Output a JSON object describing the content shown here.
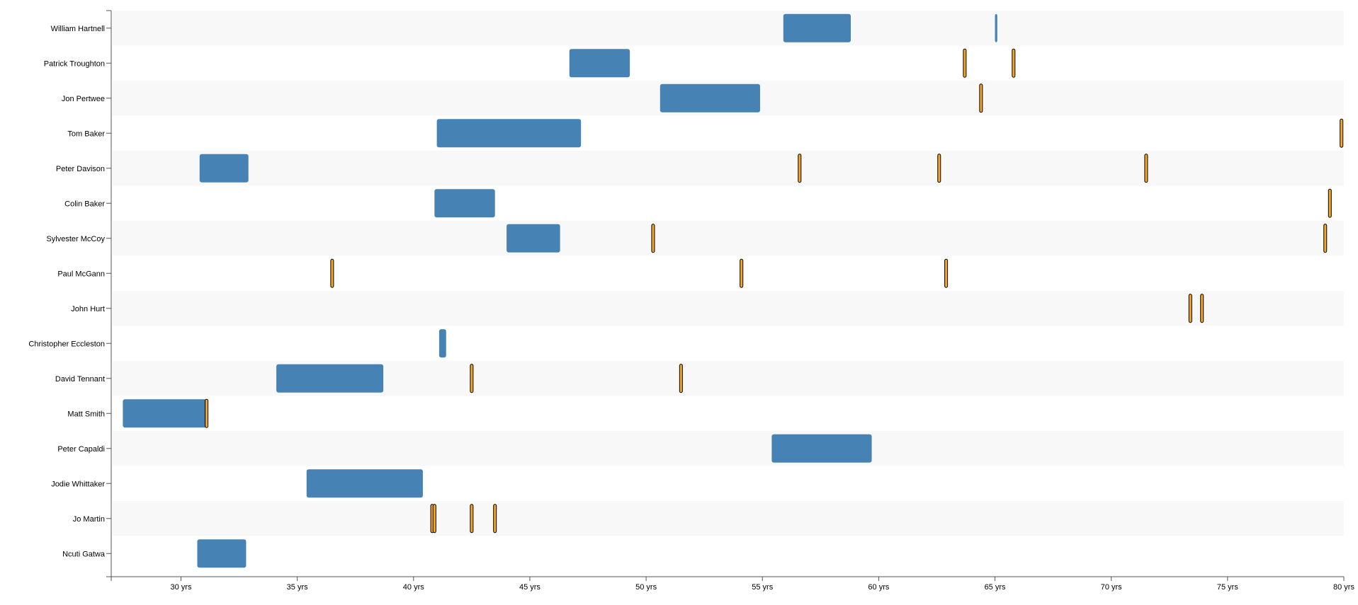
{
  "chart_data": {
    "type": "timeline",
    "title": "",
    "xlabel": "",
    "ylabel": "",
    "x_unit": "yrs",
    "xlim": [
      27,
      80
    ],
    "x_ticks": [
      30,
      35,
      40,
      45,
      50,
      55,
      60,
      65,
      70,
      75,
      80
    ],
    "x_tick_labels": [
      "30 yrs",
      "35 yrs",
      "40 yrs",
      "45 yrs",
      "50 yrs",
      "55 yrs",
      "60 yrs",
      "65 yrs",
      "70 yrs",
      "75 yrs",
      "80 yrs"
    ],
    "grid": false,
    "rows": [
      {
        "label": "William Hartnell",
        "spans": [
          [
            55.9,
            58.8
          ],
          [
            65.0,
            65.1
          ]
        ],
        "marks": []
      },
      {
        "label": "Patrick Troughton",
        "spans": [
          [
            46.7,
            49.3
          ]
        ],
        "marks": [
          63.7,
          65.8
        ]
      },
      {
        "label": "Jon Pertwee",
        "spans": [
          [
            50.6,
            54.9
          ]
        ],
        "marks": [
          64.4
        ]
      },
      {
        "label": "Tom Baker",
        "spans": [
          [
            41.0,
            47.2
          ]
        ],
        "marks": [
          79.9
        ]
      },
      {
        "label": "Peter Davison",
        "spans": [
          [
            30.8,
            32.9
          ]
        ],
        "marks": [
          56.6,
          62.6,
          71.5
        ]
      },
      {
        "label": "Colin Baker",
        "spans": [
          [
            40.9,
            43.5
          ]
        ],
        "marks": [
          79.4
        ]
      },
      {
        "label": "Sylvester McCoy",
        "spans": [
          [
            44.0,
            46.3
          ]
        ],
        "marks": [
          50.3,
          79.2
        ]
      },
      {
        "label": "Paul McGann",
        "spans": [],
        "marks": [
          36.5,
          54.1,
          62.9
        ]
      },
      {
        "label": "John Hurt",
        "spans": [],
        "marks": [
          73.4,
          73.9
        ]
      },
      {
        "label": "Christopher Eccleston",
        "spans": [
          [
            41.1,
            41.4
          ]
        ],
        "marks": []
      },
      {
        "label": "David Tennant",
        "spans": [
          [
            34.1,
            38.7
          ]
        ],
        "marks": [
          42.5,
          51.5
        ]
      },
      {
        "label": "Matt Smith",
        "spans": [
          [
            27.5,
            31.1
          ]
        ],
        "marks": [
          31.1
        ]
      },
      {
        "label": "Peter Capaldi",
        "spans": [
          [
            55.4,
            59.7
          ]
        ],
        "marks": []
      },
      {
        "label": "Jodie Whittaker",
        "spans": [
          [
            35.4,
            40.4
          ]
        ],
        "marks": []
      },
      {
        "label": "Jo Martin",
        "spans": [],
        "marks": [
          40.8,
          40.9,
          42.5,
          43.5
        ]
      },
      {
        "label": "Ncuti Gatwa",
        "spans": [
          [
            30.7,
            32.8
          ]
        ],
        "marks": []
      }
    ],
    "colors": {
      "span": "#4682b4",
      "mark_fill": "#f5a623",
      "mark_stroke": "#000000",
      "band_even": "#f8f8f8",
      "band_odd": "#ffffff",
      "axis": "#555555"
    }
  }
}
